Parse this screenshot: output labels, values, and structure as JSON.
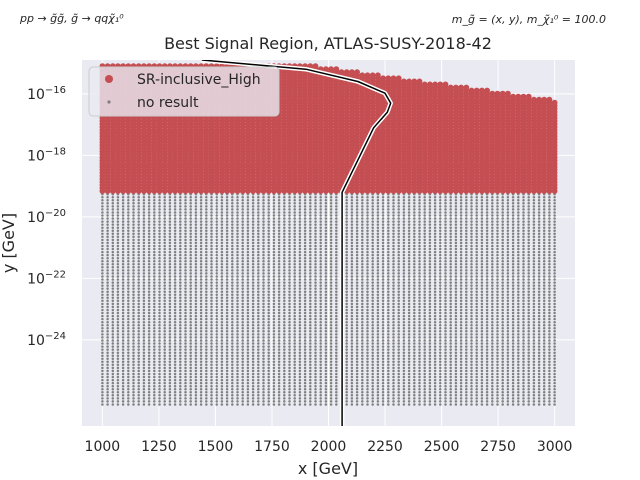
{
  "chart_data": {
    "type": "scatter",
    "title": "Best Signal Region, ATLAS-SUSY-2018-42",
    "xlabel": "x [GeV]",
    "ylabel": "y [GeV]",
    "yscale": "log",
    "xlim": [
      910,
      3090
    ],
    "ylim_log10": [
      -26.8,
      -14.9
    ],
    "x_ticks": [
      1000,
      1250,
      1500,
      1750,
      2000,
      2250,
      2500,
      2750,
      3000
    ],
    "y_tick_exponents": [
      -16,
      -18,
      -20,
      -22,
      -24
    ],
    "y_tick_base": "10",
    "annotation_left": "pp → g̃g̃, g̃ → qqχ̃₁⁰",
    "annotation_right": "m_g̃ = (x, y), m_χ̃₁⁰ = 100.0",
    "legend_position": "top-left",
    "grid": true,
    "colors": {
      "background": "#eaeaf2",
      "grid": "#ffffff",
      "signal": "#c44e52",
      "no_result": "#808080",
      "contour": "#000000"
    },
    "series": [
      {
        "name": "SR-inclusive_High",
        "color": "#c44e52",
        "x_range": [
          1000,
          3000
        ],
        "log10_y_range": [
          -19.25,
          -16.2
        ],
        "top_boundary_log10_y": [
          [
            1000,
            -15.1
          ],
          [
            1950,
            -15.1
          ],
          [
            3000,
            -16.2
          ]
        ]
      },
      {
        "name": "no result",
        "color": "#808080",
        "x_range": [
          1000,
          3000
        ],
        "log10_y_range": [
          -26.1,
          -15.1
        ]
      }
    ],
    "exclusion_contour": {
      "color": "#000000",
      "points": [
        [
          1440,
          -14.9
        ],
        [
          1900,
          -15.2
        ],
        [
          2130,
          -15.6
        ],
        [
          2250,
          -15.98
        ],
        [
          2275,
          -16.3
        ],
        [
          2260,
          -16.6
        ],
        [
          2200,
          -17.1
        ],
        [
          2060,
          -19.2
        ],
        [
          2060,
          -26.8
        ]
      ]
    }
  },
  "text": {
    "title": "Best Signal Region, ATLAS-SUSY-2018-42",
    "xlabel": "x [GeV]",
    "ylabel": "y [GeV]",
    "note_left": "pp → g̃g̃, g̃ → qqχ̃₁⁰",
    "note_right": "m_g̃ = (x, y), m_χ̃₁⁰ = 100.0",
    "legend_signal": "SR-inclusive_High",
    "legend_none": "no result"
  }
}
